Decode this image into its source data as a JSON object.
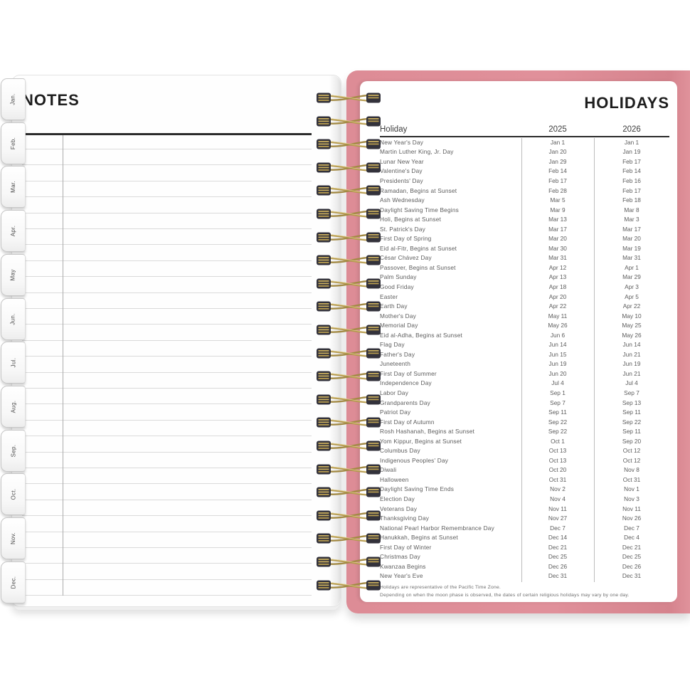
{
  "left_page": {
    "title": "NOTES",
    "tabs": [
      "Jan.",
      "Feb.",
      "Mar.",
      "Apr.",
      "May",
      "Jun.",
      "Jul.",
      "Aug.",
      "Sep.",
      "Oct.",
      "Nov.",
      "Dec."
    ]
  },
  "right_page": {
    "title": "HOLIDAYS",
    "table": {
      "columns": [
        "Holiday",
        "2025",
        "2026"
      ],
      "rows": [
        [
          "New Year's Day",
          "Jan 1",
          "Jan 1"
        ],
        [
          "Martin Luther King, Jr. Day",
          "Jan 20",
          "Jan 19"
        ],
        [
          "Lunar New Year",
          "Jan 29",
          "Feb 17"
        ],
        [
          "Valentine's Day",
          "Feb 14",
          "Feb 14"
        ],
        [
          "Presidents' Day",
          "Feb 17",
          "Feb 16"
        ],
        [
          "Ramadan, Begins at Sunset",
          "Feb 28",
          "Feb 17"
        ],
        [
          "Ash Wednesday",
          "Mar 5",
          "Feb 18"
        ],
        [
          "Daylight Saving Time Begins",
          "Mar 9",
          "Mar 8"
        ],
        [
          "Holi, Begins at Sunset",
          "Mar 13",
          "Mar 3"
        ],
        [
          "St. Patrick's Day",
          "Mar 17",
          "Mar 17"
        ],
        [
          "First Day of Spring",
          "Mar 20",
          "Mar 20"
        ],
        [
          "Eid al-Fitr, Begins at Sunset",
          "Mar 30",
          "Mar 19"
        ],
        [
          "César Chávez Day",
          "Mar 31",
          "Mar 31"
        ],
        [
          "Passover, Begins at Sunset",
          "Apr 12",
          "Apr 1"
        ],
        [
          "Palm Sunday",
          "Apr 13",
          "Mar 29"
        ],
        [
          "Good Friday",
          "Apr 18",
          "Apr 3"
        ],
        [
          "Easter",
          "Apr 20",
          "Apr 5"
        ],
        [
          "Earth Day",
          "Apr 22",
          "Apr 22"
        ],
        [
          "Mother's Day",
          "May 11",
          "May 10"
        ],
        [
          "Memorial Day",
          "May 26",
          "May 25"
        ],
        [
          "Eid al-Adha, Begins at Sunset",
          "Jun 6",
          "May 26"
        ],
        [
          "Flag Day",
          "Jun 14",
          "Jun 14"
        ],
        [
          "Father's Day",
          "Jun 15",
          "Jun 21"
        ],
        [
          "Juneteenth",
          "Jun 19",
          "Jun 19"
        ],
        [
          "First Day of Summer",
          "Jun 20",
          "Jun 21"
        ],
        [
          "Independence Day",
          "Jul 4",
          "Jul 4"
        ],
        [
          "Labor Day",
          "Sep 1",
          "Sep 7"
        ],
        [
          "Grandparents Day",
          "Sep 7",
          "Sep 13"
        ],
        [
          "Patriot Day",
          "Sep 11",
          "Sep 11"
        ],
        [
          "First Day of Autumn",
          "Sep 22",
          "Sep 22"
        ],
        [
          "Rosh Hashanah, Begins at Sunset",
          "Sep 22",
          "Sep 11"
        ],
        [
          "Yom Kippur, Begins at Sunset",
          "Oct 1",
          "Sep 20"
        ],
        [
          "Columbus Day",
          "Oct 13",
          "Oct 12"
        ],
        [
          "Indigenous Peoples' Day",
          "Oct 13",
          "Oct 12"
        ],
        [
          "Diwali",
          "Oct 20",
          "Nov 8"
        ],
        [
          "Halloween",
          "Oct 31",
          "Oct 31"
        ],
        [
          "Daylight Saving Time Ends",
          "Nov 2",
          "Nov 1"
        ],
        [
          "Election Day",
          "Nov 4",
          "Nov 3"
        ],
        [
          "Veterans Day",
          "Nov 11",
          "Nov 11"
        ],
        [
          "Thanksgiving Day",
          "Nov 27",
          "Nov 26"
        ],
        [
          "National Pearl Harbor Remembrance Day",
          "Dec 7",
          "Dec 7"
        ],
        [
          "Hanukkah, Begins at Sunset",
          "Dec 14",
          "Dec 4"
        ],
        [
          "First Day of Winter",
          "Dec 21",
          "Dec 21"
        ],
        [
          "Christmas Day",
          "Dec 25",
          "Dec 25"
        ],
        [
          "Kwanzaa Begins",
          "Dec 26",
          "Dec 26"
        ],
        [
          "New Year's Eve",
          "Dec 31",
          "Dec 31"
        ]
      ]
    },
    "footnotes": [
      "Holidays are representative of the Pacific Time Zone.",
      "Depending on when the moon phase is observed, the dates of certain religious holidays may vary by one day."
    ]
  },
  "colors": {
    "cover_pink": "#e0909a",
    "coil_gold": "#b59a50",
    "coil_cap_dark": "#33323b"
  }
}
